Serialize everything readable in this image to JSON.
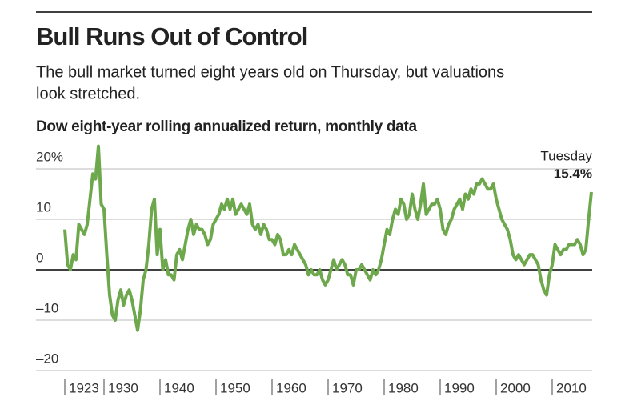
{
  "chart_data": {
    "type": "line",
    "title": "Bull Runs Out of Control",
    "subtitle": [
      "The bull market turned eight years old on Thursday, but valuations",
      "look stretched."
    ],
    "y_label": "Dow eight-year rolling annualized return, monthly data",
    "annotation": {
      "text": "Tuesday",
      "value": "15.4%"
    },
    "xlim": [
      1920,
      2020
    ],
    "ylim": [
      -20,
      25
    ],
    "yticks": [
      {
        "value": -20,
        "label": "–20"
      },
      {
        "value": -10,
        "label": "–10"
      },
      0,
      10,
      {
        "value": 20,
        "label": "20%"
      }
    ],
    "xticks": [
      1923,
      1930,
      1940,
      1950,
      1960,
      1970,
      1980,
      1990,
      2000,
      2010
    ],
    "grid": true,
    "series": [
      {
        "color": "#6ea84c",
        "x": [
          1923,
          1923.5,
          1924,
          1924.5,
          1925,
          1925.5,
          1926,
          1926.5,
          1927,
          1927.5,
          1928,
          1928.5,
          1929,
          1929.5,
          1930,
          1930.5,
          1931,
          1931.5,
          1932,
          1932.5,
          1933,
          1933.5,
          1934,
          1934.5,
          1935,
          1935.5,
          1936,
          1936.5,
          1937,
          1937.5,
          1938,
          1938.5,
          1939,
          1939.5,
          1940,
          1940.5,
          1941,
          1941.5,
          1942,
          1942.5,
          1943,
          1943.5,
          1944,
          1944.5,
          1945,
          1945.5,
          1946,
          1946.5,
          1947,
          1947.5,
          1948,
          1948.5,
          1949,
          1949.5,
          1950,
          1950.5,
          1951,
          1951.5,
          1952,
          1952.5,
          1953,
          1953.5,
          1954,
          1954.5,
          1955,
          1955.5,
          1956,
          1956.5,
          1957,
          1957.5,
          1958,
          1958.5,
          1959,
          1959.5,
          1960,
          1960.5,
          1961,
          1961.5,
          1962,
          1962.5,
          1963,
          1963.5,
          1964,
          1964.5,
          1965,
          1965.5,
          1966,
          1966.5,
          1967,
          1967.5,
          1968,
          1968.5,
          1969,
          1969.5,
          1970,
          1970.5,
          1971,
          1971.5,
          1972,
          1972.5,
          1973,
          1973.5,
          1974,
          1974.5,
          1975,
          1975.5,
          1976,
          1976.5,
          1977,
          1977.5,
          1978,
          1978.5,
          1979,
          1979.5,
          1980,
          1980.5,
          1981,
          1981.5,
          1982,
          1982.5,
          1983,
          1983.5,
          1984,
          1984.5,
          1985,
          1985.5,
          1986,
          1986.5,
          1987,
          1987.5,
          1988,
          1988.5,
          1989,
          1989.5,
          1990,
          1990.5,
          1991,
          1991.5,
          1992,
          1992.5,
          1993,
          1993.5,
          1994,
          1994.5,
          1995,
          1995.5,
          1996,
          1996.5,
          1997,
          1997.5,
          1998,
          1998.5,
          1999,
          1999.5,
          2000,
          2000.5,
          2001,
          2001.5,
          2002,
          2002.5,
          2003,
          2003.5,
          2004,
          2004.5,
          2005,
          2005.5,
          2006,
          2006.5,
          2007,
          2007.5,
          2008,
          2008.5,
          2009,
          2009.5,
          2010,
          2010.5,
          2011,
          2011.5,
          2012,
          2012.5,
          2013,
          2013.5,
          2014,
          2014.5,
          2015,
          2015.5,
          2016,
          2016.5,
          2017
        ],
        "values": [
          8,
          1,
          0,
          3,
          2,
          9,
          8,
          7,
          9,
          14,
          19,
          18,
          24.5,
          13,
          12,
          3,
          -5,
          -9,
          -10,
          -6,
          -4,
          -7,
          -5,
          -4,
          -6,
          -9,
          -12,
          -8,
          -2,
          0,
          5,
          12,
          14,
          3,
          8,
          0,
          2,
          -1,
          -1,
          -2,
          3,
          4,
          2,
          5,
          8,
          10,
          7,
          9,
          8,
          8,
          7,
          5,
          6,
          9,
          10,
          11,
          13,
          12,
          14,
          12,
          14,
          11,
          12,
          13,
          12,
          11,
          13,
          9,
          8,
          9,
          7,
          9,
          8,
          6,
          6,
          5,
          7,
          6,
          3,
          3,
          4,
          3,
          5,
          4,
          3,
          2,
          1,
          -1,
          0,
          -1,
          -1,
          0,
          -2,
          -3,
          -2,
          0,
          2,
          0,
          1,
          2,
          1,
          -1,
          -1,
          -3,
          0,
          0,
          1,
          0,
          -1,
          -2,
          0,
          -1,
          0,
          2,
          5,
          8,
          7,
          10,
          12,
          11,
          14,
          13,
          10,
          11,
          15,
          12,
          10,
          13,
          17,
          11,
          12,
          13,
          13,
          14,
          12,
          8,
          7,
          9,
          10,
          12,
          13,
          14,
          12,
          15,
          14,
          16,
          15,
          17,
          17,
          18,
          17,
          16,
          16,
          17,
          14,
          12,
          10,
          9,
          8,
          6,
          3,
          2,
          3,
          2,
          1,
          2,
          3,
          3,
          2,
          1,
          -2,
          -4,
          -5,
          -1,
          1,
          5,
          4,
          3,
          4,
          4,
          5,
          5,
          5,
          6,
          5,
          3,
          4,
          10,
          15.4
        ]
      }
    ]
  }
}
